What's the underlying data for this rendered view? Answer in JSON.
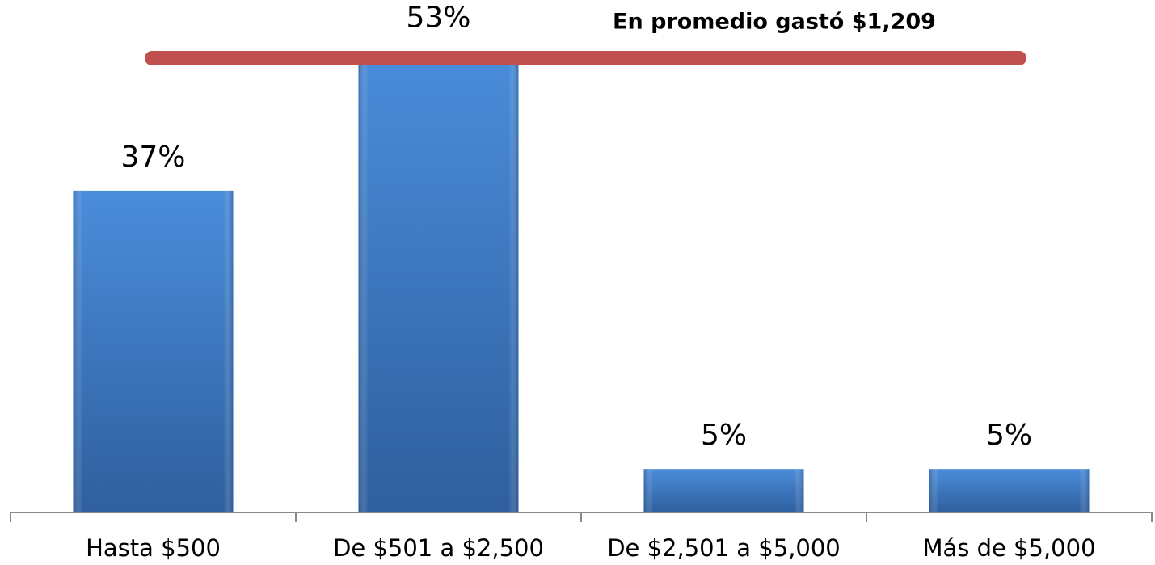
{
  "chart_data": {
    "type": "bar",
    "annotation": "En promedio gastó $1,209",
    "categories": [
      "Hasta $500",
      "De $501 a $2,500",
      "De $2,501 a $5,000",
      "Más de $5,000"
    ],
    "values": [
      37,
      53,
      5,
      5
    ],
    "value_labels": [
      "37%",
      "53%",
      "5%",
      "5%"
    ],
    "color": "#3f7fd0"
  }
}
